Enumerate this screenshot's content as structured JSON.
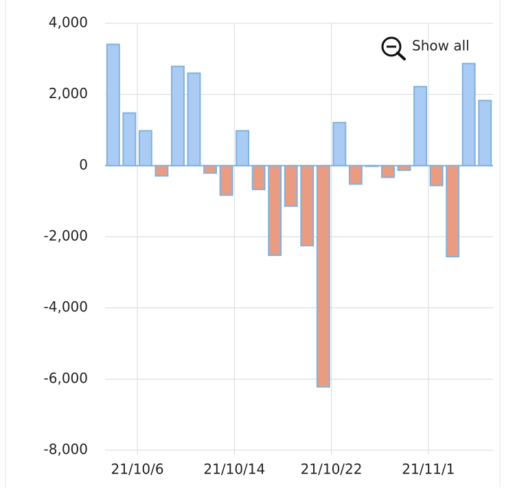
{
  "chart_data": {
    "type": "bar",
    "categories": [
      null,
      null,
      "21/10/6",
      null,
      null,
      null,
      null,
      null,
      "21/10/14",
      null,
      null,
      null,
      null,
      null,
      "21/10/22",
      null,
      null,
      null,
      null,
      null,
      "21/11/1",
      null,
      null,
      null
    ],
    "values": [
      3410,
      1480,
      980,
      -290,
      2790,
      2600,
      -210,
      -830,
      980,
      -670,
      -2520,
      -1140,
      -2250,
      -6220,
      1210,
      -520,
      -20,
      -330,
      -130,
      2220,
      -560,
      -2560,
      2870,
      1830
    ],
    "positive_color": "#a9cbf4",
    "negative_color": "#ea9c82",
    "edge_color": "#7fb2dd",
    "ylim": [
      -8000,
      4000
    ],
    "yticks": [
      {
        "value": -8000,
        "label": "-8,000"
      },
      {
        "value": -6000,
        "label": "-6,000"
      },
      {
        "value": -4000,
        "label": "-4,000"
      },
      {
        "value": -2000,
        "label": "-2,000"
      },
      0,
      {
        "value": 2000,
        "label": "2,000"
      },
      {
        "value": 4000,
        "label": "4,000"
      }
    ],
    "grid": true,
    "button": "Show all"
  }
}
